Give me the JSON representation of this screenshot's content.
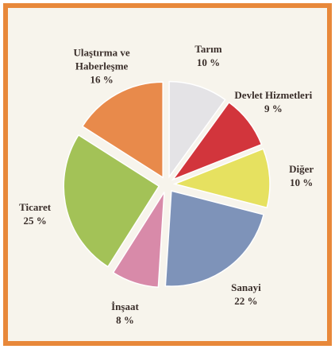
{
  "chart_data": {
    "type": "pie",
    "categories": [
      "Tarım",
      "Devlet Hizmetleri",
      "Diğer",
      "Sanayi",
      "İnşaat",
      "Ticaret",
      "Ulaştırma ve Haberleşme"
    ],
    "values": [
      10,
      9,
      10,
      22,
      8,
      25,
      16
    ],
    "value_labels": [
      "10 %",
      "9 %",
      "10 %",
      "22 %",
      "8 %",
      "25 %",
      "16 %"
    ],
    "colors": [
      "#e4e3e6",
      "#d2353c",
      "#e6e160",
      "#7e93b9",
      "#d88aa9",
      "#a3c257",
      "#e88a4b"
    ]
  }
}
